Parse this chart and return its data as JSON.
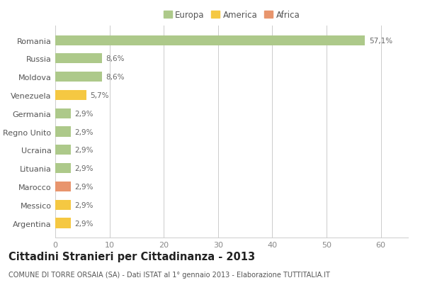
{
  "categories": [
    "Romania",
    "Russia",
    "Moldova",
    "Venezuela",
    "Germania",
    "Regno Unito",
    "Ucraina",
    "Lituania",
    "Marocco",
    "Messico",
    "Argentina"
  ],
  "values": [
    57.1,
    8.6,
    8.6,
    5.7,
    2.9,
    2.9,
    2.9,
    2.9,
    2.9,
    2.9,
    2.9
  ],
  "labels": [
    "57,1%",
    "8,6%",
    "8,6%",
    "5,7%",
    "2,9%",
    "2,9%",
    "2,9%",
    "2,9%",
    "2,9%",
    "2,9%",
    "2,9%"
  ],
  "colors": [
    "#adc98a",
    "#adc98a",
    "#adc98a",
    "#f5c842",
    "#adc98a",
    "#adc98a",
    "#adc98a",
    "#adc98a",
    "#e8956d",
    "#f5c842",
    "#f5c842"
  ],
  "legend_labels": [
    "Europa",
    "America",
    "Africa"
  ],
  "legend_colors": [
    "#adc98a",
    "#f5c842",
    "#e8956d"
  ],
  "title": "Cittadini Stranieri per Cittadinanza - 2013",
  "subtitle": "COMUNE DI TORRE ORSAIA (SA) - Dati ISTAT al 1° gennaio 2013 - Elaborazione TUTTITALIA.IT",
  "xlim": [
    0,
    65
  ],
  "xticks": [
    0,
    10,
    20,
    30,
    40,
    50,
    60
  ],
  "background_color": "#ffffff",
  "bar_height": 0.55,
  "grid_color": "#cccccc",
  "title_fontsize": 10.5,
  "subtitle_fontsize": 7,
  "tick_label_fontsize": 8,
  "value_label_fontsize": 7.5,
  "legend_fontsize": 8.5
}
